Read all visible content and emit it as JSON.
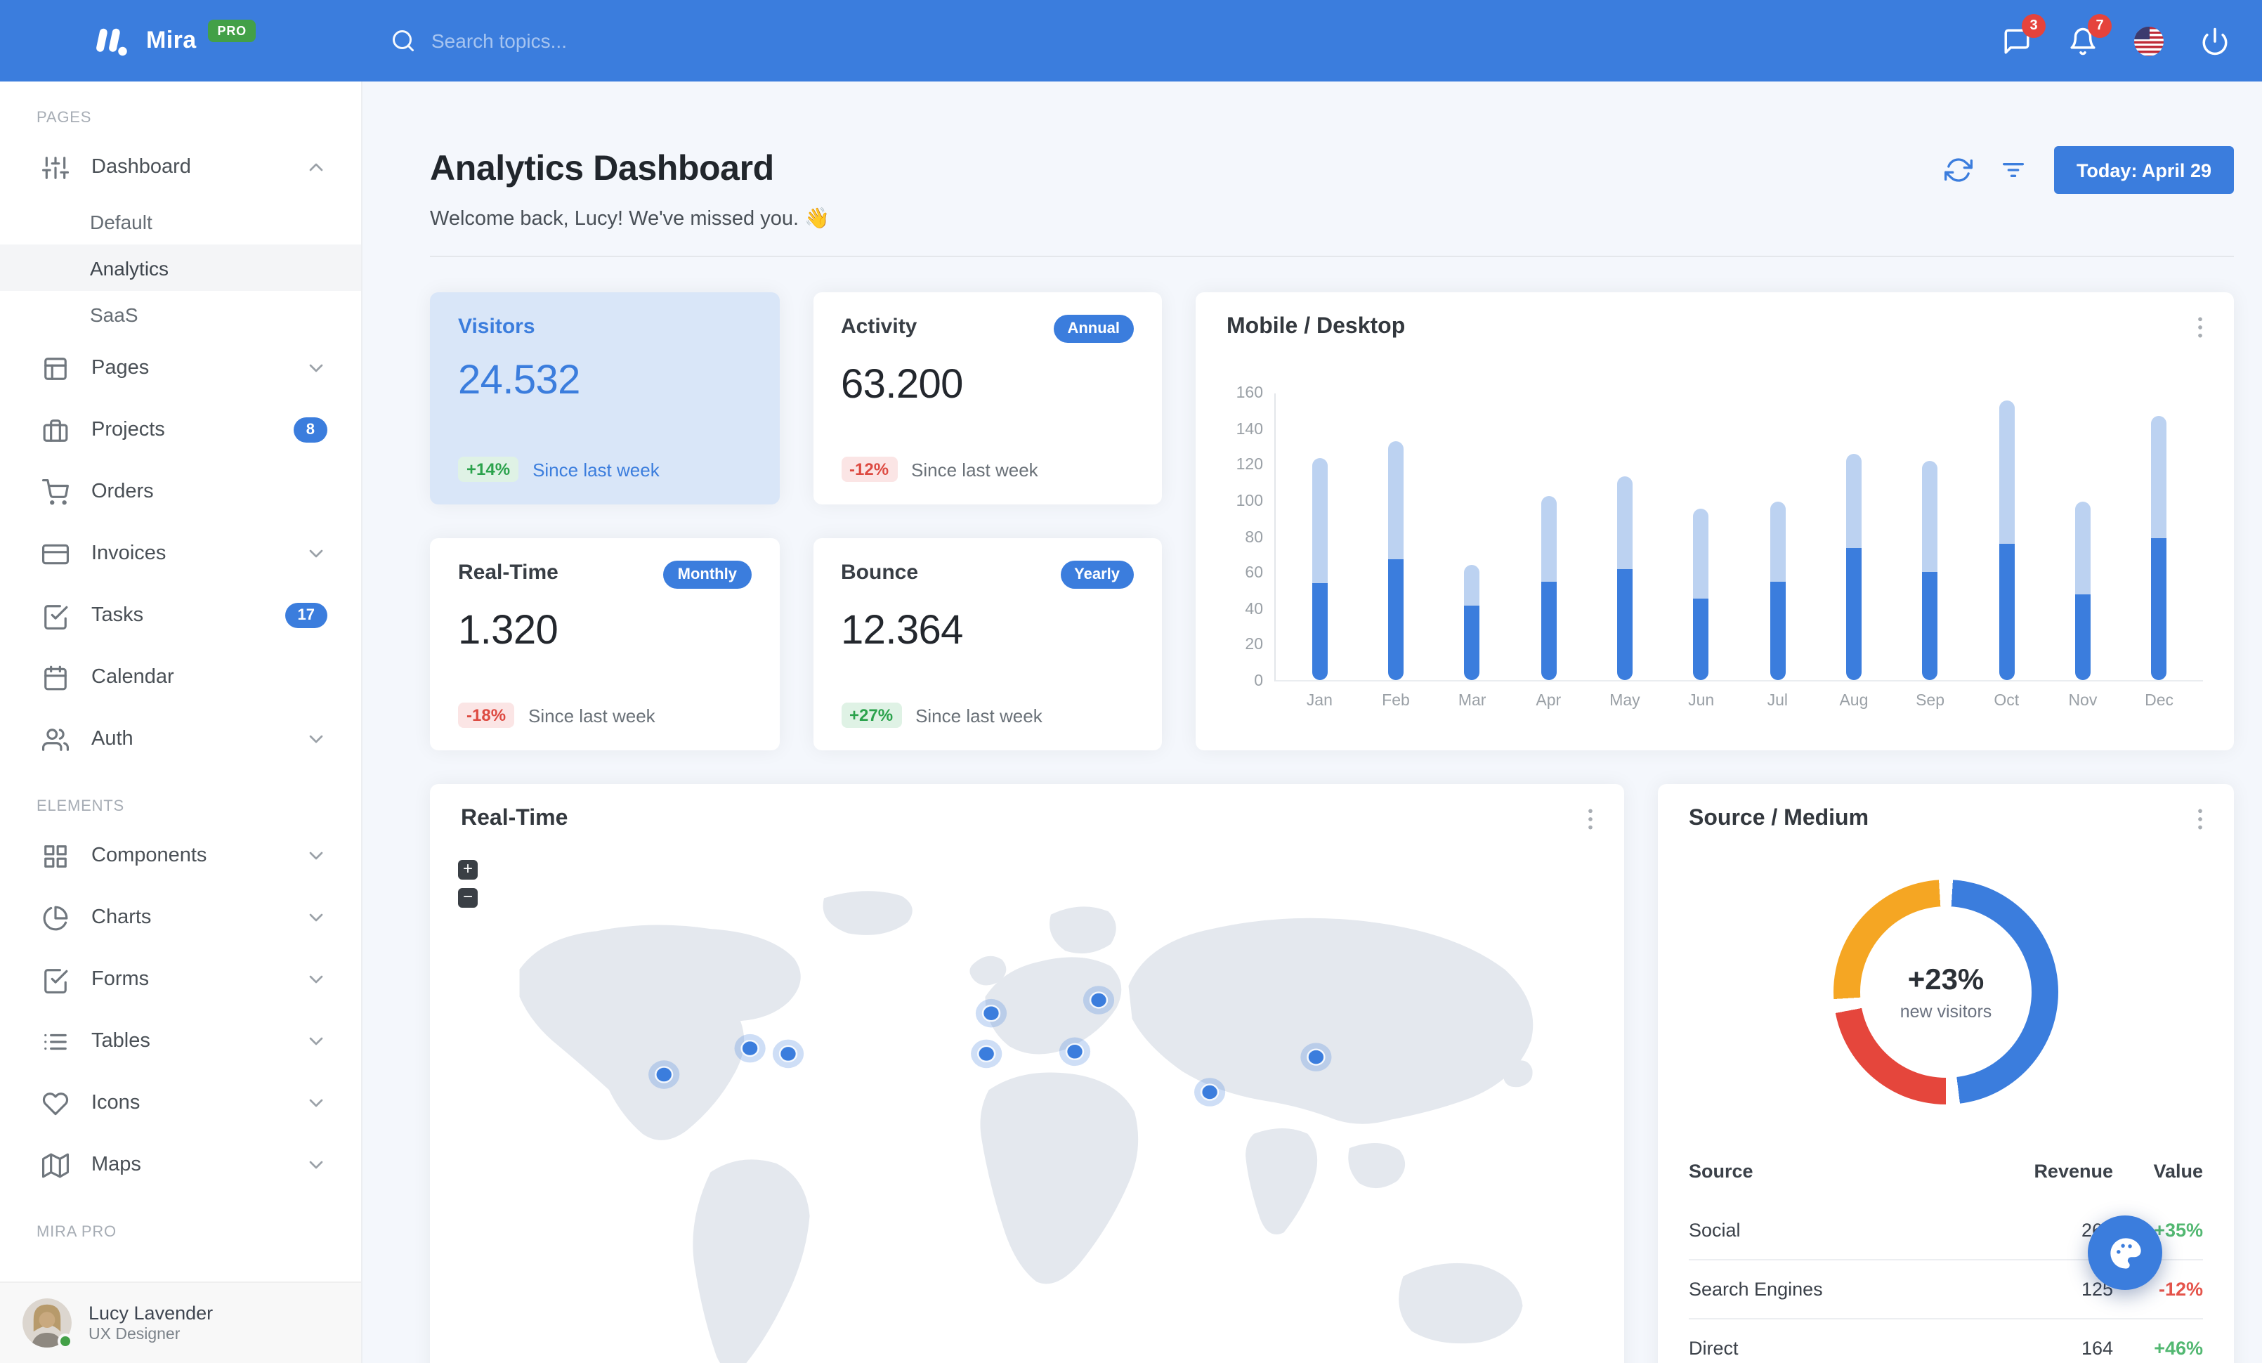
{
  "colors": {
    "primary": "#3B7DDD",
    "bar_light": "#BCD2F1",
    "success": "#2BA24C",
    "danger": "#DD4A41",
    "warning": "#F5A623",
    "donut_red": "#E5463C",
    "pro_badge": "#43A047",
    "navbar": "#3B7DDD",
    "page_bg": "#F4F7FC",
    "badge_alert": "#E5433C"
  },
  "navbar": {
    "brand": "Mira",
    "brand_badge": "PRO",
    "search": {
      "placeholder": "Search topics...",
      "icon": "search"
    },
    "messages": {
      "icon": "message-square",
      "badge": "3"
    },
    "notifications": {
      "icon": "bell",
      "badge": "7"
    },
    "language": {
      "icon": "us-flag"
    },
    "power": {
      "icon": "power"
    }
  },
  "sidebar": {
    "sections": [
      {
        "label": "PAGES",
        "items": [
          {
            "icon": "sliders",
            "label": "Dashboard",
            "chevron": "up",
            "children": [
              {
                "label": "Default",
                "active": false
              },
              {
                "label": "Analytics",
                "active": true
              },
              {
                "label": "SaaS",
                "active": false
              }
            ]
          },
          {
            "icon": "layout",
            "label": "Pages",
            "chevron": "down"
          },
          {
            "icon": "briefcase",
            "label": "Projects",
            "badge": "8"
          },
          {
            "icon": "shopping-cart",
            "label": "Orders"
          },
          {
            "icon": "credit-card",
            "label": "Invoices",
            "chevron": "down"
          },
          {
            "icon": "check-square",
            "label": "Tasks",
            "badge": "17"
          },
          {
            "icon": "calendar",
            "label": "Calendar"
          },
          {
            "icon": "users",
            "label": "Auth",
            "chevron": "down"
          }
        ]
      },
      {
        "label": "ELEMENTS",
        "items": [
          {
            "icon": "grid",
            "label": "Components",
            "chevron": "down"
          },
          {
            "icon": "pie-chart",
            "label": "Charts",
            "chevron": "down"
          },
          {
            "icon": "check-square",
            "label": "Forms",
            "chevron": "down"
          },
          {
            "icon": "list",
            "label": "Tables",
            "chevron": "down"
          },
          {
            "icon": "heart",
            "label": "Icons",
            "chevron": "down"
          },
          {
            "icon": "map",
            "label": "Maps",
            "chevron": "down"
          }
        ]
      },
      {
        "label": "MIRA PRO",
        "items": []
      }
    ],
    "user": {
      "name": "Lucy Lavender",
      "role": "UX Designer",
      "status": "online"
    }
  },
  "header": {
    "title": "Analytics Dashboard",
    "welcome": "Welcome back, Lucy! We've missed you. 👋",
    "refresh_icon": "refresh-cw",
    "filter_icon": "filter",
    "today_button": "Today: April 29"
  },
  "stat_cards": [
    {
      "title": "Visitors",
      "value": "24.532",
      "delta": "+14%",
      "delta_dir": "up",
      "caption": "Since last week",
      "variant": "primary"
    },
    {
      "title": "Activity",
      "badge": "Annual",
      "value": "63.200",
      "delta": "-12%",
      "delta_dir": "down",
      "caption": "Since last week"
    },
    {
      "title": "Real-Time",
      "badge": "Monthly",
      "value": "1.320",
      "delta": "-18%",
      "delta_dir": "down",
      "caption": "Since last week"
    },
    {
      "title": "Bounce",
      "badge": "Yearly",
      "value": "12.364",
      "delta": "+27%",
      "delta_dir": "up",
      "caption": "Since last week"
    }
  ],
  "chart_data": [
    {
      "type": "bar",
      "stacked": true,
      "title": "Mobile / Desktop",
      "categories": [
        "Jan",
        "Feb",
        "Mar",
        "Apr",
        "May",
        "Jun",
        "Jul",
        "Aug",
        "Sep",
        "Oct",
        "Nov",
        "Dec"
      ],
      "series": [
        {
          "name": "Mobile",
          "color": "#3B7DDD",
          "values": [
            54,
            67,
            41,
            55,
            62,
            45,
            55,
            73,
            60,
            76,
            48,
            79
          ]
        },
        {
          "name": "Desktop",
          "color": "#BCD2F1",
          "values": [
            69,
            66,
            23,
            47,
            51,
            50,
            44,
            53,
            62,
            79,
            51,
            68
          ]
        }
      ],
      "ylim": [
        0,
        160
      ],
      "yticks": [
        0,
        20,
        40,
        60,
        80,
        100,
        120,
        140,
        160
      ],
      "grid": false,
      "legend": "none"
    },
    {
      "type": "donut",
      "title": "Source / Medium",
      "center_label": "+23%",
      "center_sublabel": "new visitors",
      "segments": [
        {
          "color": "#3B7DDD",
          "pct": 47
        },
        {
          "color": "#E5463C",
          "pct": 22
        },
        {
          "color": "#F5A623",
          "pct": 25
        }
      ],
      "gap_pct": 2
    }
  ],
  "map_card": {
    "title": "Real-Time",
    "zoom_in_label": "+",
    "zoom_out_label": "−",
    "marker_color": "#3B7DDD",
    "markers": [
      {
        "x": 196,
        "y": 201
      },
      {
        "x": 268,
        "y": 177
      },
      {
        "x": 300,
        "y": 182
      },
      {
        "x": 466,
        "y": 182
      },
      {
        "x": 470,
        "y": 145
      },
      {
        "x": 540,
        "y": 180
      },
      {
        "x": 560,
        "y": 133
      },
      {
        "x": 653,
        "y": 217
      },
      {
        "x": 742,
        "y": 185
      }
    ]
  },
  "source_table": {
    "columns": [
      "Source",
      "Revenue",
      "Value"
    ],
    "rows": [
      {
        "source": "Social",
        "revenue": "260",
        "value": "+35%",
        "dir": "up"
      },
      {
        "source": "Search Engines",
        "revenue": "125",
        "value": "-12%",
        "dir": "down"
      },
      {
        "source": "Direct",
        "revenue": "164",
        "value": "+46%",
        "dir": "up"
      }
    ]
  },
  "fab": {
    "icon": "palette"
  }
}
